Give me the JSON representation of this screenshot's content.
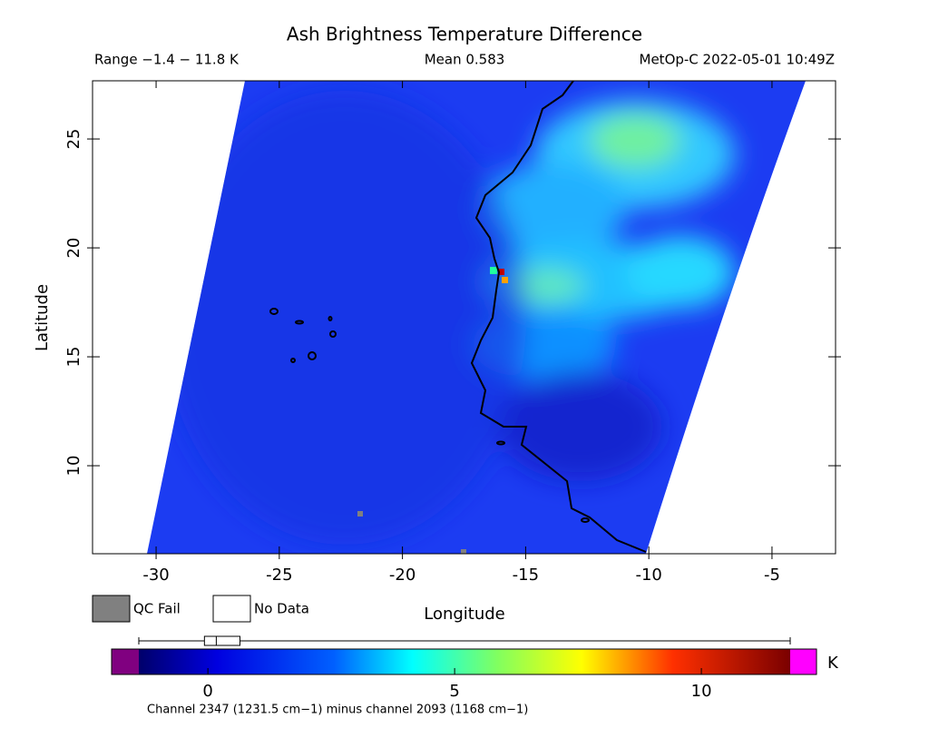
{
  "title": "Ash Brightness Temperature Difference",
  "range": "Range −1.4 − 11.8 K",
  "mean": "Mean 0.583",
  "satellite": "MetOp-C 2022-05-01 10:49Z",
  "map": {
    "xlabel": "Longitude",
    "ylabel": "Latitude",
    "xlim": [
      -32.58,
      -2.42
    ],
    "ylim": [
      5.96,
      27.67
    ],
    "xticks": [
      -30,
      -25,
      -20,
      -15,
      -10,
      -5
    ],
    "yticks": [
      10,
      15,
      20,
      25
    ]
  },
  "legend": {
    "qc_fail": "QC Fail",
    "no_data": "No Data"
  },
  "colorbar": {
    "lim": [
      -1.4,
      11.8
    ],
    "ticks": [
      0,
      5,
      10
    ],
    "unit": "K",
    "boxplot": {
      "min": -1.4,
      "q1": -0.07,
      "median": 0.17,
      "q3": 0.65,
      "max": 11.8
    }
  },
  "footnote": "Channel 2347 (1231.5 cm−1) minus channel 2093 (1168 cm−1)"
}
